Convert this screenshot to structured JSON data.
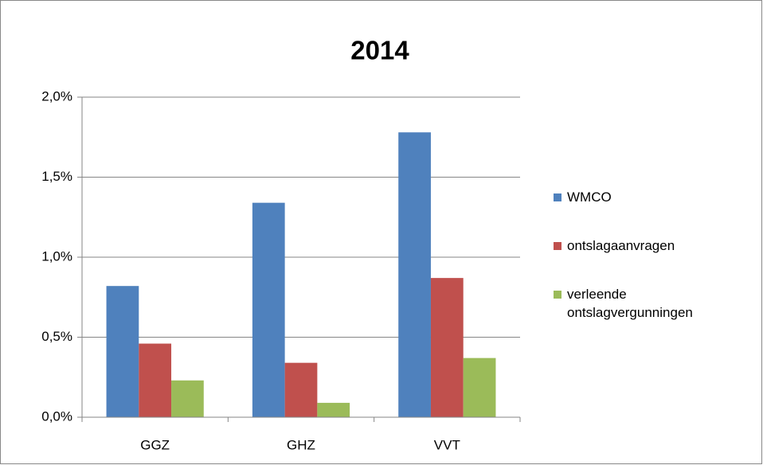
{
  "chart_data": {
    "type": "bar",
    "title": "2014",
    "categories": [
      "GGZ",
      "GHZ",
      "VVT"
    ],
    "series": [
      {
        "name": "WMCO",
        "color": "#4f81bd",
        "values": [
          0.82,
          1.34,
          1.78
        ]
      },
      {
        "name": "ontslagaanvragen",
        "color": "#c0504d",
        "values": [
          0.46,
          0.34,
          0.87
        ]
      },
      {
        "name": "verleende ontslagvergunningen",
        "color": "#9bbb59",
        "values": [
          0.23,
          0.09,
          0.37
        ]
      }
    ],
    "ylim": [
      0,
      2
    ],
    "yticks": [
      {
        "value": 0,
        "label": "0,0%"
      },
      {
        "value": 0.5,
        "label": "0,5%"
      },
      {
        "value": 1,
        "label": "1,0%"
      },
      {
        "value": 1.5,
        "label": "1,5%"
      },
      {
        "value": 2,
        "label": "2,0%"
      }
    ],
    "grid": true,
    "legend": "right"
  }
}
